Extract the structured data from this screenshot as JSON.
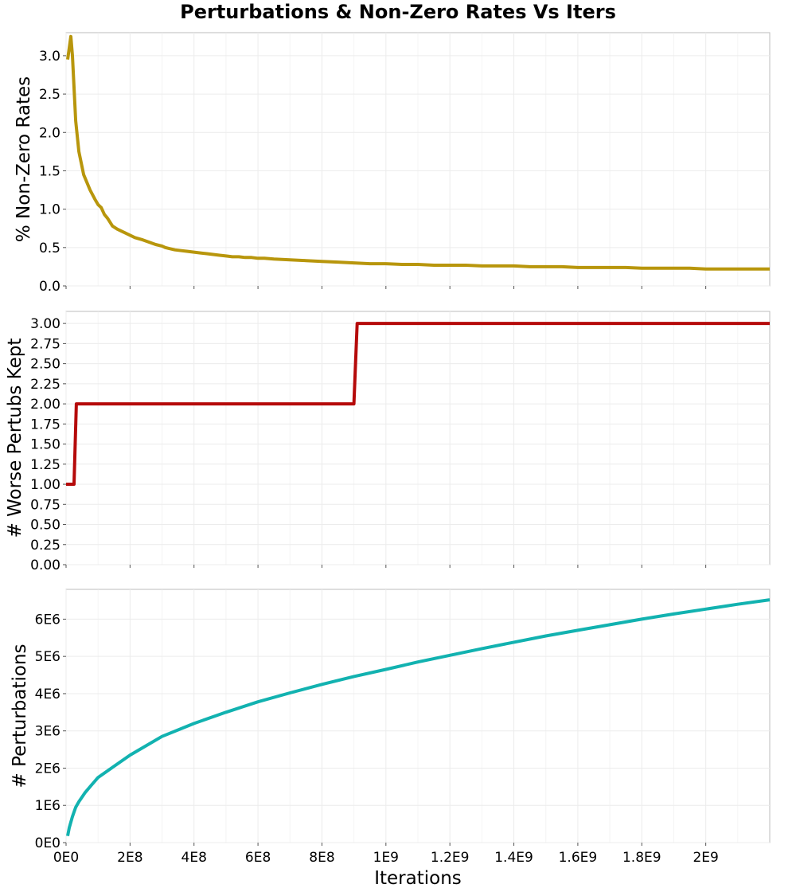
{
  "title": "Perturbations & Non-Zero Rates Vs Iters",
  "xlabel": "Iterations",
  "x_ticks": [
    {
      "v": 0,
      "label": "0E0"
    },
    {
      "v": 200000000,
      "label": "2E8"
    },
    {
      "v": 400000000,
      "label": "4E8"
    },
    {
      "v": 600000000,
      "label": "6E8"
    },
    {
      "v": 800000000,
      "label": "8E8"
    },
    {
      "v": 1000000000,
      "label": "1E9"
    },
    {
      "v": 1200000000,
      "label": "1.2E9"
    },
    {
      "v": 1400000000,
      "label": "1.4E9"
    },
    {
      "v": 1600000000,
      "label": "1.6E9"
    },
    {
      "v": 1800000000,
      "label": "1.8E9"
    },
    {
      "v": 2000000000,
      "label": "2E9"
    }
  ],
  "colors": {
    "nonzero": "#b8960c",
    "worse": "#b50a0a",
    "perturb": "#12b2b0"
  },
  "chart_data": [
    {
      "type": "line",
      "name": "nonzero",
      "ylabel": "% Non-Zero Rates",
      "xlim": [
        0,
        2200000000
      ],
      "ylim": [
        0,
        3.3
      ],
      "grid": true,
      "y_ticks": [
        {
          "v": 0,
          "label": "0.0"
        },
        {
          "v": 0.5,
          "label": "0.5"
        },
        {
          "v": 1.0,
          "label": "1.0"
        },
        {
          "v": 1.5,
          "label": "1.5"
        },
        {
          "v": 2.0,
          "label": "2.0"
        },
        {
          "v": 2.5,
          "label": "2.5"
        },
        {
          "v": 3.0,
          "label": "3.0"
        }
      ],
      "x": [
        5000000,
        15000000,
        20000000,
        30000000,
        40000000,
        55000000,
        65000000,
        75000000,
        90000000,
        100000000,
        110000000,
        120000000,
        130000000,
        145000000,
        160000000,
        175000000,
        195000000,
        215000000,
        240000000,
        260000000,
        280000000,
        300000000,
        310000000,
        320000000,
        340000000,
        360000000,
        380000000,
        400000000,
        420000000,
        440000000,
        460000000,
        480000000,
        500000000,
        520000000,
        540000000,
        560000000,
        580000000,
        600000000,
        620000000,
        650000000,
        700000000,
        750000000,
        800000000,
        850000000,
        900000000,
        950000000,
        1000000000,
        1050000000,
        1100000000,
        1150000000,
        1200000000,
        1250000000,
        1300000000,
        1350000000,
        1400000000,
        1450000000,
        1500000000,
        1550000000,
        1600000000,
        1650000000,
        1700000000,
        1750000000,
        1800000000,
        1850000000,
        1900000000,
        1950000000,
        2000000000,
        2050000000,
        2100000000,
        2150000000,
        2200000000
      ],
      "y": [
        2.95,
        3.25,
        3.0,
        2.15,
        1.75,
        1.45,
        1.35,
        1.25,
        1.13,
        1.06,
        1.02,
        0.93,
        0.88,
        0.78,
        0.74,
        0.71,
        0.67,
        0.63,
        0.6,
        0.57,
        0.54,
        0.52,
        0.5,
        0.49,
        0.47,
        0.46,
        0.45,
        0.44,
        0.43,
        0.42,
        0.41,
        0.4,
        0.39,
        0.38,
        0.38,
        0.37,
        0.37,
        0.36,
        0.36,
        0.35,
        0.34,
        0.33,
        0.32,
        0.31,
        0.3,
        0.29,
        0.29,
        0.28,
        0.28,
        0.27,
        0.27,
        0.27,
        0.26,
        0.26,
        0.26,
        0.25,
        0.25,
        0.25,
        0.24,
        0.24,
        0.24,
        0.24,
        0.23,
        0.23,
        0.23,
        0.23,
        0.22,
        0.22,
        0.22,
        0.22,
        0.22
      ]
    },
    {
      "type": "line",
      "name": "worse",
      "ylabel": "# Worse Pertubs Kept",
      "xlim": [
        0,
        2200000000
      ],
      "ylim": [
        0,
        3.15
      ],
      "grid": true,
      "y_ticks": [
        {
          "v": 0,
          "label": "0.00"
        },
        {
          "v": 0.25,
          "label": "0.25"
        },
        {
          "v": 0.5,
          "label": "0.50"
        },
        {
          "v": 0.75,
          "label": "0.75"
        },
        {
          "v": 1.0,
          "label": "1.00"
        },
        {
          "v": 1.25,
          "label": "1.25"
        },
        {
          "v": 1.5,
          "label": "1.50"
        },
        {
          "v": 1.75,
          "label": "1.75"
        },
        {
          "v": 2.0,
          "label": "2.00"
        },
        {
          "v": 2.25,
          "label": "2.25"
        },
        {
          "v": 2.5,
          "label": "2.50"
        },
        {
          "v": 2.75,
          "label": "2.75"
        },
        {
          "v": 3.0,
          "label": "3.00"
        }
      ],
      "x": [
        0,
        25000000,
        32000000,
        900000000,
        910000000,
        2200000000
      ],
      "y": [
        1,
        1,
        2,
        2,
        3,
        3
      ]
    },
    {
      "type": "line",
      "name": "perturb",
      "ylabel": "# Perturbations",
      "xlim": [
        0,
        2200000000
      ],
      "ylim": [
        0,
        6800000
      ],
      "grid": true,
      "y_ticks": [
        {
          "v": 0,
          "label": "0E0"
        },
        {
          "v": 1000000,
          "label": "1E6"
        },
        {
          "v": 2000000,
          "label": "2E6"
        },
        {
          "v": 3000000,
          "label": "3E6"
        },
        {
          "v": 4000000,
          "label": "4E6"
        },
        {
          "v": 5000000,
          "label": "5E6"
        },
        {
          "v": 6000000,
          "label": "6E6"
        }
      ],
      "x": [
        5000000,
        10000000,
        20000000,
        30000000,
        40000000,
        60000000,
        80000000,
        100000000,
        150000000,
        200000000,
        250000000,
        300000000,
        400000000,
        500000000,
        600000000,
        700000000,
        800000000,
        900000000,
        1000000000,
        1100000000,
        1200000000,
        1300000000,
        1400000000,
        1500000000,
        1600000000,
        1700000000,
        1800000000,
        1900000000,
        2000000000,
        2100000000,
        2200000000
      ],
      "y": [
        180000,
        400000,
        700000,
        950000,
        1100000,
        1350000,
        1550000,
        1750000,
        2050000,
        2350000,
        2600000,
        2850000,
        3200000,
        3500000,
        3780000,
        4020000,
        4250000,
        4460000,
        4650000,
        4850000,
        5030000,
        5210000,
        5380000,
        5550000,
        5700000,
        5850000,
        6000000,
        6140000,
        6270000,
        6400000,
        6520000
      ]
    }
  ]
}
